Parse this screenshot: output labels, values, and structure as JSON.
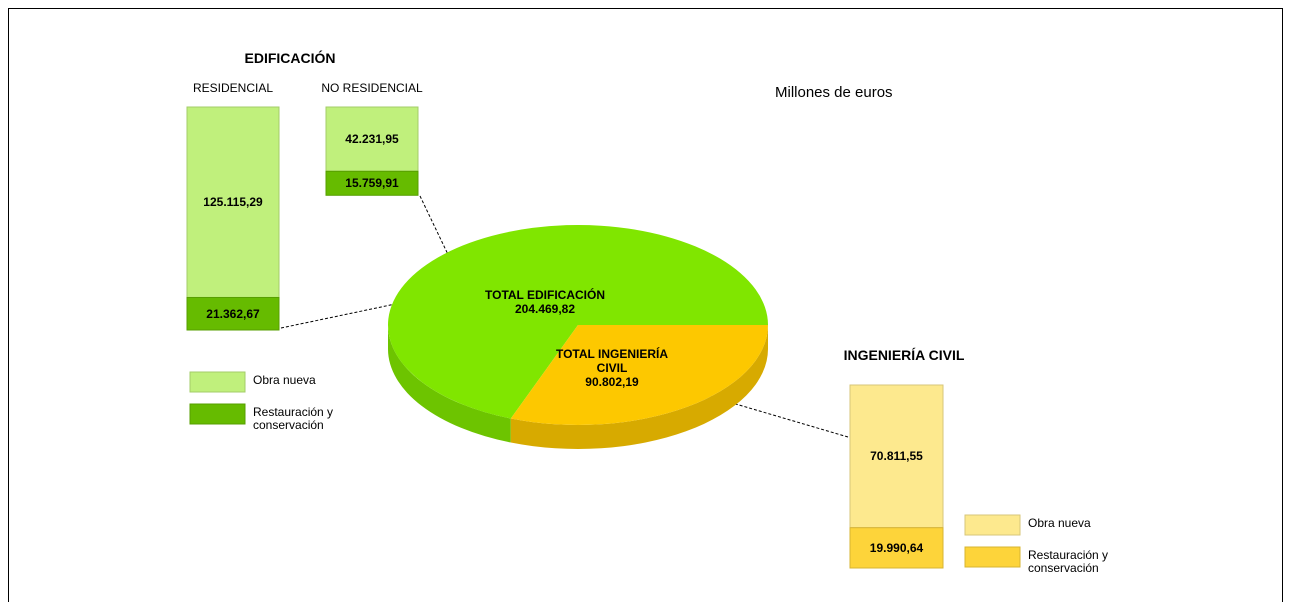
{
  "chart_data": [
    {
      "type": "pie",
      "annotation": "Millones de euros",
      "categories": [
        "TOTAL EDIFICACIÓN",
        "TOTAL INGENIERÍA CIVIL"
      ],
      "values": [
        204469.82,
        90802.19
      ],
      "value_labels": [
        "204.469,82",
        "90.802,19"
      ],
      "colors": [
        "#80e600",
        "#fdc800"
      ]
    },
    {
      "type": "bar",
      "title": "EDIFICACIÓN",
      "categories": [
        "RESIDENCIAL",
        "NO RESIDENCIAL"
      ],
      "series": [
        {
          "name": "Obra nueva",
          "color": "#c0f07c",
          "values": [
            125115.29,
            42231.95
          ],
          "value_labels": [
            "125.115,29",
            "42.231,95"
          ]
        },
        {
          "name": "Restauración y conservación",
          "color": "#66bb00",
          "values": [
            21362.67,
            15759.91
          ],
          "value_labels": [
            "21.362,67",
            "15.759,91"
          ]
        }
      ]
    },
    {
      "type": "bar",
      "title": "INGENIERÍA CIVIL",
      "series": [
        {
          "name": "Obra nueva",
          "color": "#fde98e",
          "values": [
            70811.55
          ],
          "value_labels": [
            "70.811,55"
          ]
        },
        {
          "name": "Restauración y conservación",
          "color": "#fdd43a",
          "values": [
            19990.64
          ],
          "value_labels": [
            "19.990,64"
          ]
        }
      ]
    }
  ]
}
